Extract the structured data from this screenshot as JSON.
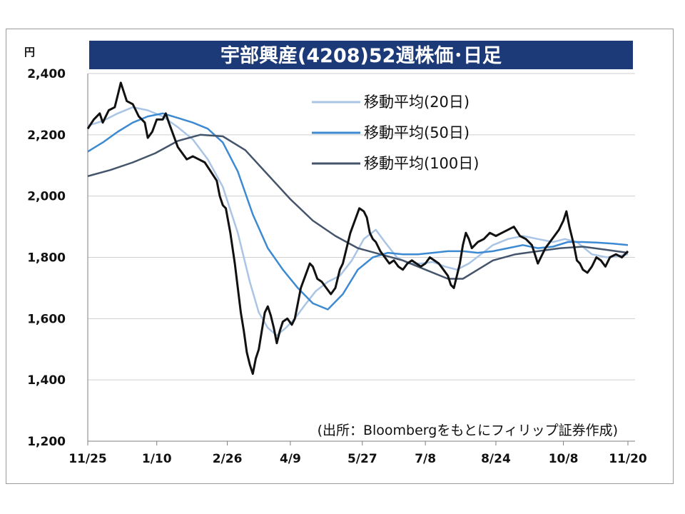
{
  "chart_data": {
    "type": "candlestick-line",
    "title": "宇部興産(4208)52週株価･日足",
    "unit": "円",
    "source": "(出所：Bloombergをもとにフィリップ証券作成)",
    "ylim": [
      1200,
      2400
    ],
    "yticks": [
      1200,
      1400,
      1600,
      1800,
      2000,
      2200,
      2400
    ],
    "ytick_labels": [
      "1,200",
      "1,400",
      "1,600",
      "1,800",
      "2,000",
      "2,200",
      "2,400"
    ],
    "grid": true,
    "legend_position": "top-right",
    "x_range": [
      0,
      360
    ],
    "xticks": [
      {
        "label": "11/25",
        "x": 0
      },
      {
        "label": "1/10",
        "x": 46
      },
      {
        "label": "2/26",
        "x": 93
      },
      {
        "label": "4/9",
        "x": 135
      },
      {
        "label": "5/27",
        "x": 183
      },
      {
        "label": "7/8",
        "x": 225
      },
      {
        "label": "8/24",
        "x": 272
      },
      {
        "label": "10/8",
        "x": 317
      },
      {
        "label": "11/20",
        "x": 360
      }
    ],
    "price": {
      "name": "",
      "color": "#111111",
      "points": [
        [
          0,
          2220
        ],
        [
          4,
          2250
        ],
        [
          8,
          2270
        ],
        [
          10,
          2240
        ],
        [
          14,
          2280
        ],
        [
          18,
          2290
        ],
        [
          20,
          2330
        ],
        [
          22,
          2370
        ],
        [
          24,
          2340
        ],
        [
          26,
          2310
        ],
        [
          30,
          2300
        ],
        [
          34,
          2260
        ],
        [
          38,
          2240
        ],
        [
          40,
          2190
        ],
        [
          43,
          2210
        ],
        [
          46,
          2250
        ],
        [
          50,
          2250
        ],
        [
          52,
          2270
        ],
        [
          54,
          2240
        ],
        [
          57,
          2200
        ],
        [
          60,
          2160
        ],
        [
          63,
          2140
        ],
        [
          66,
          2120
        ],
        [
          70,
          2130
        ],
        [
          74,
          2120
        ],
        [
          78,
          2110
        ],
        [
          82,
          2080
        ],
        [
          86,
          2050
        ],
        [
          88,
          2000
        ],
        [
          90,
          1970
        ],
        [
          92,
          1960
        ],
        [
          95,
          1880
        ],
        [
          98,
          1780
        ],
        [
          100,
          1700
        ],
        [
          102,
          1620
        ],
        [
          104,
          1560
        ],
        [
          106,
          1490
        ],
        [
          108,
          1450
        ],
        [
          110,
          1420
        ],
        [
          112,
          1470
        ],
        [
          114,
          1500
        ],
        [
          116,
          1560
        ],
        [
          118,
          1620
        ],
        [
          120,
          1640
        ],
        [
          122,
          1610
        ],
        [
          124,
          1570
        ],
        [
          126,
          1520
        ],
        [
          128,
          1560
        ],
        [
          130,
          1590
        ],
        [
          133,
          1600
        ],
        [
          136,
          1580
        ],
        [
          138,
          1600
        ],
        [
          140,
          1650
        ],
        [
          142,
          1700
        ],
        [
          145,
          1740
        ],
        [
          148,
          1780
        ],
        [
          150,
          1770
        ],
        [
          153,
          1730
        ],
        [
          156,
          1720
        ],
        [
          159,
          1700
        ],
        [
          162,
          1680
        ],
        [
          165,
          1700
        ],
        [
          168,
          1760
        ],
        [
          170,
          1780
        ],
        [
          172,
          1820
        ],
        [
          175,
          1880
        ],
        [
          178,
          1920
        ],
        [
          181,
          1960
        ],
        [
          184,
          1950
        ],
        [
          186,
          1930
        ],
        [
          188,
          1880
        ],
        [
          190,
          1860
        ],
        [
          192,
          1850
        ],
        [
          195,
          1820
        ],
        [
          198,
          1800
        ],
        [
          201,
          1780
        ],
        [
          204,
          1790
        ],
        [
          207,
          1770
        ],
        [
          210,
          1760
        ],
        [
          213,
          1780
        ],
        [
          216,
          1790
        ],
        [
          219,
          1780
        ],
        [
          222,
          1770
        ],
        [
          225,
          1780
        ],
        [
          228,
          1800
        ],
        [
          231,
          1790
        ],
        [
          234,
          1780
        ],
        [
          237,
          1760
        ],
        [
          240,
          1740
        ],
        [
          242,
          1710
        ],
        [
          244,
          1700
        ],
        [
          246,
          1740
        ],
        [
          248,
          1780
        ],
        [
          250,
          1840
        ],
        [
          252,
          1880
        ],
        [
          254,
          1860
        ],
        [
          256,
          1830
        ],
        [
          260,
          1850
        ],
        [
          264,
          1860
        ],
        [
          268,
          1880
        ],
        [
          272,
          1870
        ],
        [
          276,
          1880
        ],
        [
          280,
          1890
        ],
        [
          284,
          1900
        ],
        [
          288,
          1870
        ],
        [
          292,
          1860
        ],
        [
          296,
          1840
        ],
        [
          298,
          1810
        ],
        [
          300,
          1780
        ],
        [
          302,
          1800
        ],
        [
          305,
          1830
        ],
        [
          308,
          1850
        ],
        [
          311,
          1870
        ],
        [
          314,
          1890
        ],
        [
          317,
          1920
        ],
        [
          319,
          1950
        ],
        [
          321,
          1900
        ],
        [
          324,
          1840
        ],
        [
          326,
          1790
        ],
        [
          328,
          1780
        ],
        [
          330,
          1760
        ],
        [
          333,
          1750
        ],
        [
          336,
          1770
        ],
        [
          339,
          1800
        ],
        [
          342,
          1790
        ],
        [
          345,
          1770
        ],
        [
          348,
          1800
        ],
        [
          352,
          1810
        ],
        [
          356,
          1800
        ],
        [
          360,
          1820
        ]
      ]
    },
    "series": [
      {
        "name": "移動平均(20日)",
        "color": "#a9c4e4",
        "width": 2.5,
        "points": [
          [
            0,
            2230
          ],
          [
            10,
            2245
          ],
          [
            20,
            2270
          ],
          [
            30,
            2290
          ],
          [
            40,
            2280
          ],
          [
            50,
            2260
          ],
          [
            60,
            2225
          ],
          [
            70,
            2185
          ],
          [
            80,
            2120
          ],
          [
            90,
            2030
          ],
          [
            100,
            1880
          ],
          [
            108,
            1720
          ],
          [
            114,
            1620
          ],
          [
            120,
            1570
          ],
          [
            126,
            1545
          ],
          [
            132,
            1570
          ],
          [
            138,
            1600
          ],
          [
            144,
            1640
          ],
          [
            152,
            1690
          ],
          [
            160,
            1720
          ],
          [
            168,
            1740
          ],
          [
            176,
            1790
          ],
          [
            184,
            1860
          ],
          [
            192,
            1890
          ],
          [
            198,
            1850
          ],
          [
            206,
            1800
          ],
          [
            214,
            1780
          ],
          [
            222,
            1780
          ],
          [
            230,
            1785
          ],
          [
            238,
            1770
          ],
          [
            246,
            1760
          ],
          [
            254,
            1780
          ],
          [
            262,
            1810
          ],
          [
            270,
            1840
          ],
          [
            280,
            1860
          ],
          [
            290,
            1870
          ],
          [
            300,
            1860
          ],
          [
            310,
            1850
          ],
          [
            318,
            1860
          ],
          [
            326,
            1850
          ],
          [
            336,
            1810
          ],
          [
            346,
            1800
          ],
          [
            354,
            1805
          ],
          [
            360,
            1810
          ]
        ]
      },
      {
        "name": "移動平均(50日)",
        "color": "#3d8ad2",
        "width": 2.5,
        "points": [
          [
            0,
            2145
          ],
          [
            10,
            2175
          ],
          [
            20,
            2210
          ],
          [
            30,
            2240
          ],
          [
            40,
            2260
          ],
          [
            50,
            2270
          ],
          [
            60,
            2255
          ],
          [
            70,
            2240
          ],
          [
            80,
            2220
          ],
          [
            90,
            2175
          ],
          [
            100,
            2080
          ],
          [
            110,
            1940
          ],
          [
            120,
            1830
          ],
          [
            130,
            1760
          ],
          [
            140,
            1700
          ],
          [
            150,
            1650
          ],
          [
            160,
            1630
          ],
          [
            170,
            1680
          ],
          [
            180,
            1760
          ],
          [
            190,
            1800
          ],
          [
            200,
            1815
          ],
          [
            210,
            1810
          ],
          [
            220,
            1810
          ],
          [
            230,
            1815
          ],
          [
            240,
            1820
          ],
          [
            250,
            1820
          ],
          [
            260,
            1815
          ],
          [
            270,
            1820
          ],
          [
            280,
            1830
          ],
          [
            290,
            1840
          ],
          [
            300,
            1830
          ],
          [
            310,
            1835
          ],
          [
            320,
            1850
          ],
          [
            330,
            1850
          ],
          [
            340,
            1848
          ],
          [
            350,
            1845
          ],
          [
            360,
            1840
          ]
        ]
      },
      {
        "name": "移動平均(100日)",
        "color": "#44546a",
        "width": 2.5,
        "points": [
          [
            0,
            2065
          ],
          [
            15,
            2085
          ],
          [
            30,
            2110
          ],
          [
            45,
            2140
          ],
          [
            60,
            2180
          ],
          [
            75,
            2200
          ],
          [
            90,
            2195
          ],
          [
            105,
            2150
          ],
          [
            120,
            2070
          ],
          [
            135,
            1990
          ],
          [
            150,
            1920
          ],
          [
            165,
            1870
          ],
          [
            180,
            1830
          ],
          [
            195,
            1810
          ],
          [
            210,
            1790
          ],
          [
            225,
            1760
          ],
          [
            240,
            1730
          ],
          [
            250,
            1730
          ],
          [
            260,
            1760
          ],
          [
            270,
            1790
          ],
          [
            285,
            1810
          ],
          [
            300,
            1820
          ],
          [
            315,
            1830
          ],
          [
            330,
            1835
          ],
          [
            345,
            1825
          ],
          [
            360,
            1815
          ]
        ]
      }
    ]
  }
}
